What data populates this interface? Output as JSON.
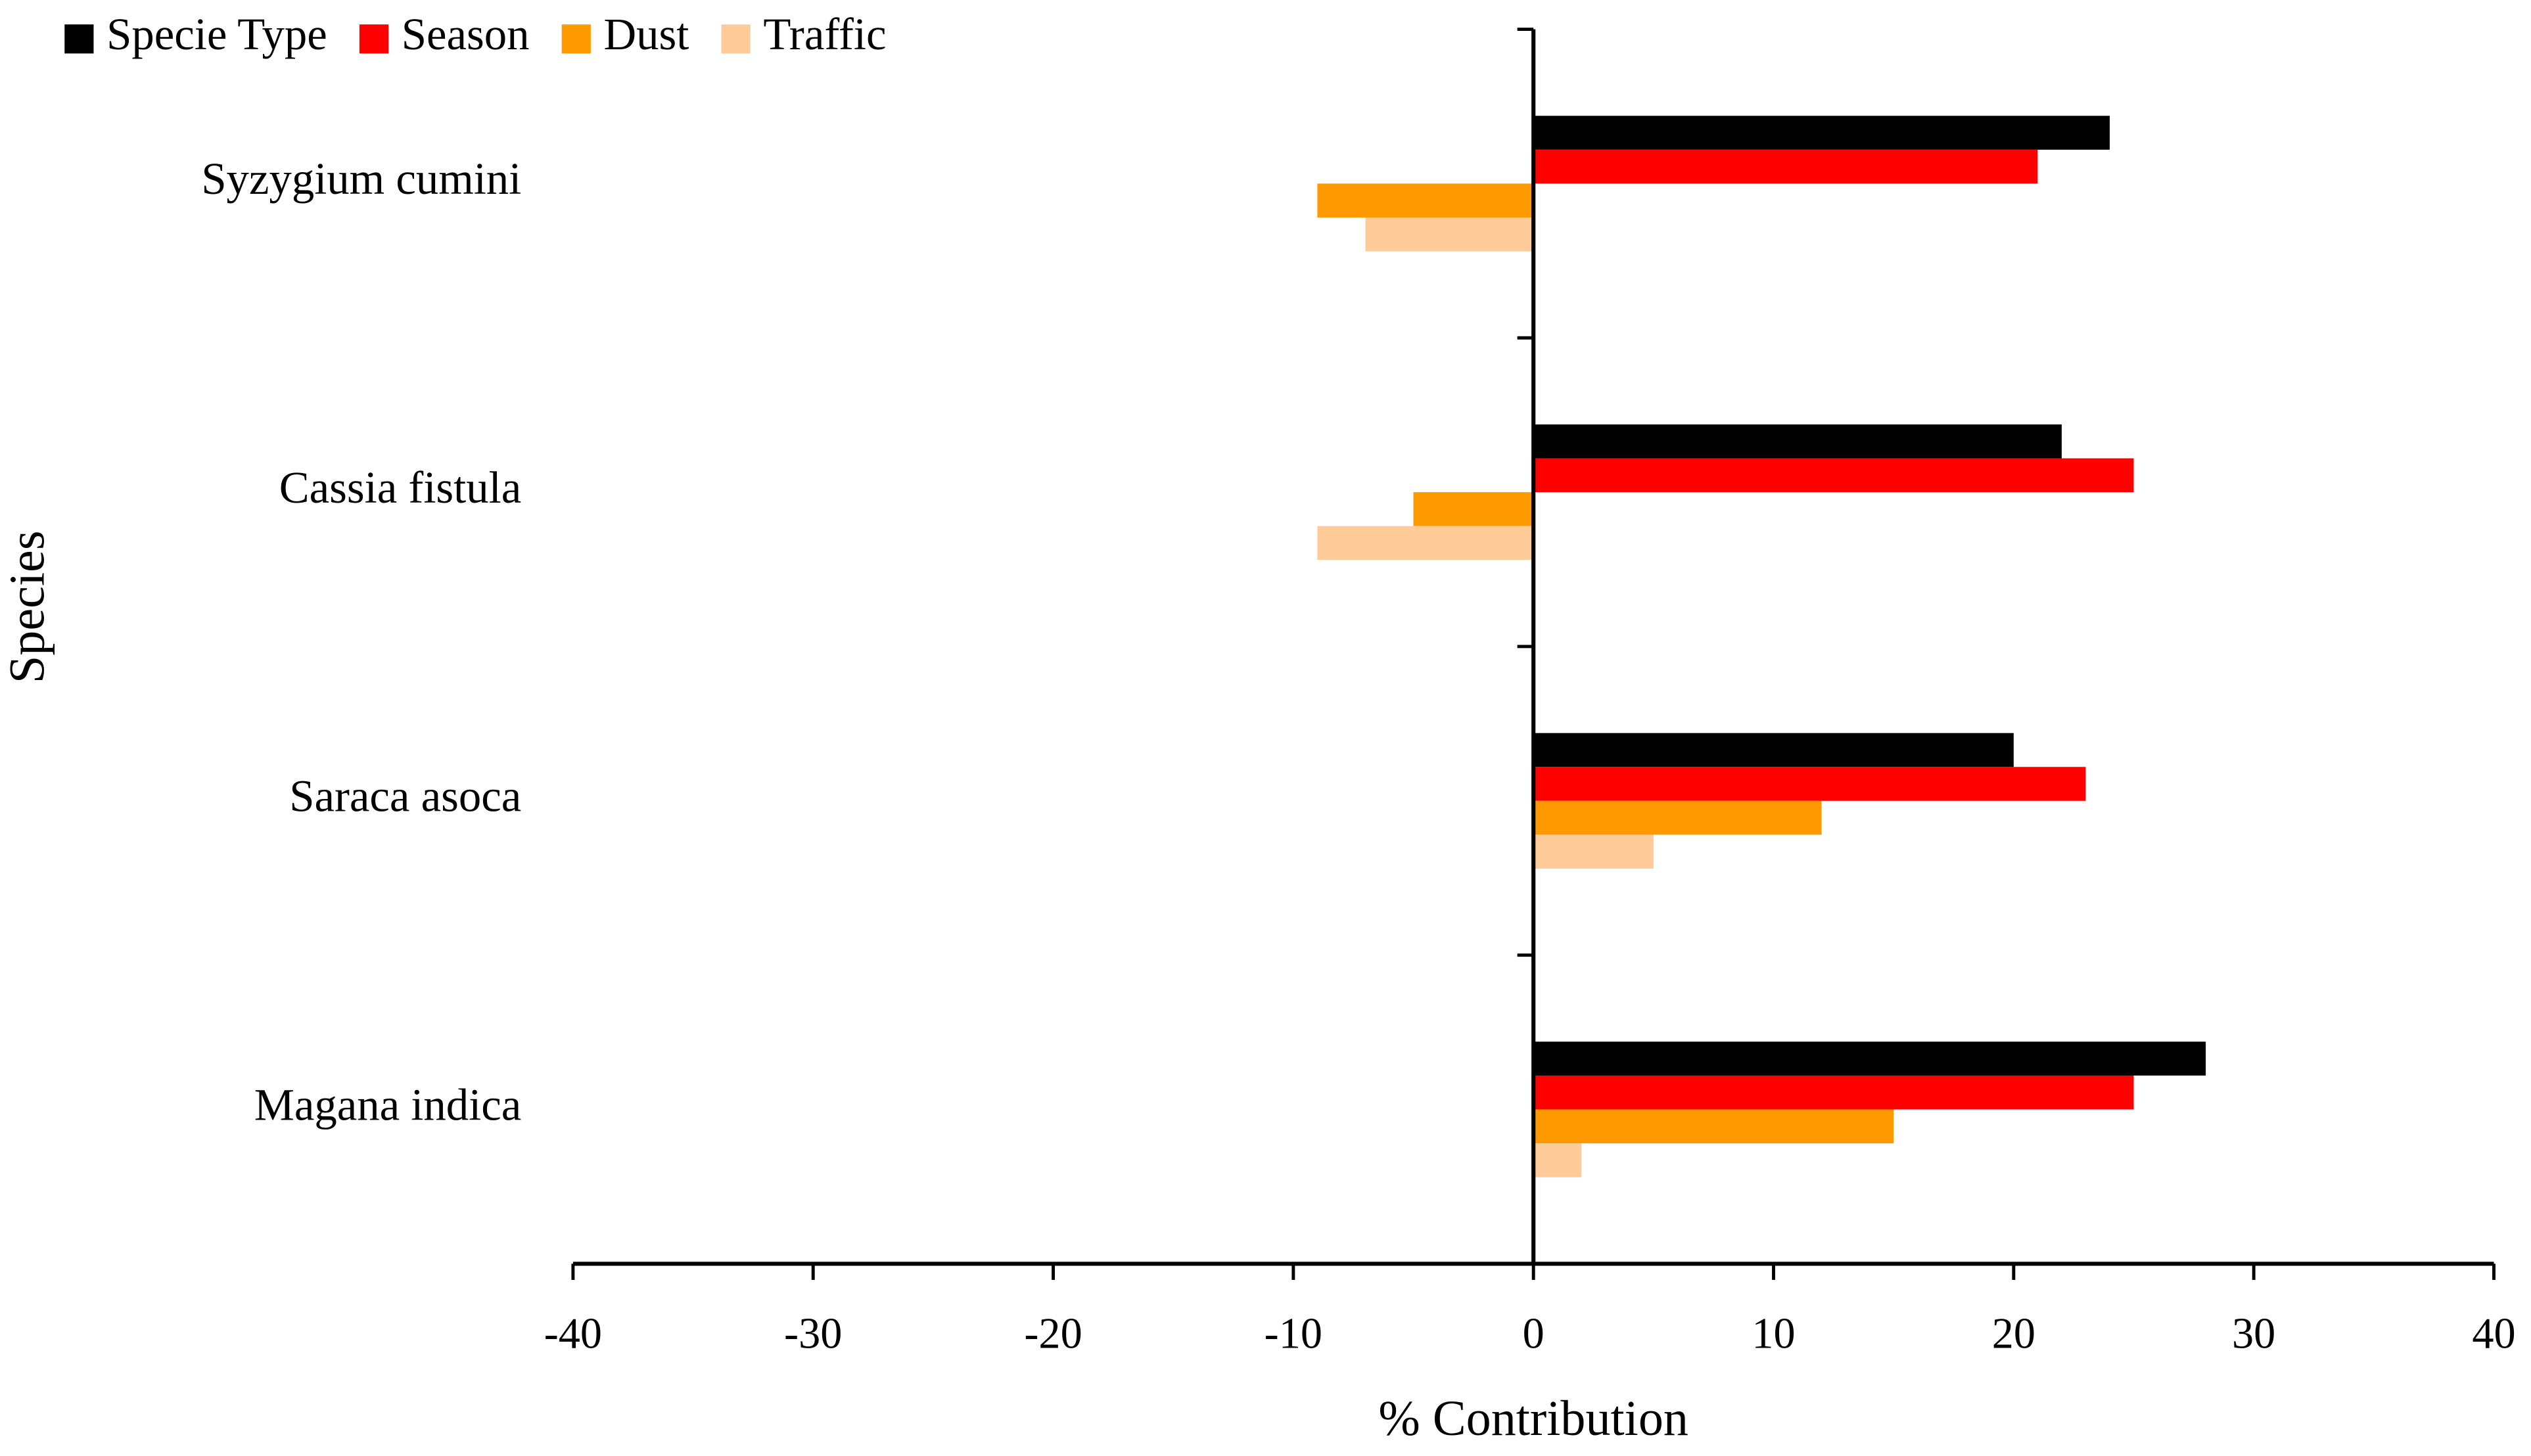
{
  "chart_data": {
    "type": "hbar",
    "x_label": "% Contribution",
    "y_label": "Species",
    "categories": [
      "Syzygium cumini",
      "Cassia fistula",
      "Saraca asoca",
      "Magana indica"
    ],
    "series": [
      {
        "name": "Specie Type",
        "color": "#000000",
        "values": [
          24,
          22,
          20,
          28
        ]
      },
      {
        "name": "Season",
        "color": "#ff0000",
        "values": [
          21,
          25,
          23,
          25
        ]
      },
      {
        "name": "Dust",
        "color": "#ff9900",
        "values": [
          -9,
          -5,
          12,
          15
        ]
      },
      {
        "name": "Traffic",
        "color": "#ffcc99",
        "values": [
          -7,
          -9,
          5,
          2
        ]
      }
    ],
    "xlim": [
      -40,
      40
    ],
    "xticks": [
      -40,
      -30,
      -20,
      -10,
      0,
      10,
      20,
      30,
      40
    ],
    "legend": "top-left"
  }
}
